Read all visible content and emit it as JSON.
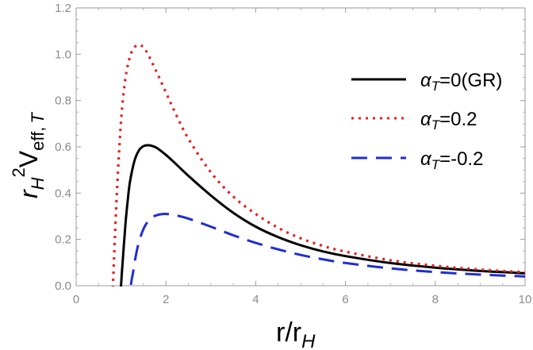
{
  "chart_data": {
    "type": "line",
    "title": "",
    "xlabel": {
      "main": "r/r",
      "sub": "H"
    },
    "ylabel": {
      "r": "r",
      "r_sub": "H",
      "sup": "2",
      "v": "V",
      "v_sub": "eff,",
      "v_sub_italic": "T"
    },
    "xlim": [
      0,
      10
    ],
    "ylim": [
      0,
      1.2
    ],
    "xticks": [
      0,
      2,
      4,
      6,
      8,
      10
    ],
    "xtick_labels": [
      "0",
      "2",
      "4",
      "6",
      "8",
      "10"
    ],
    "yticks": [
      0,
      0.2,
      0.4,
      0.6,
      0.8,
      1.0,
      1.2
    ],
    "ytick_labels": [
      "0.0",
      "0.2",
      "0.4",
      "0.6",
      "0.8",
      "1.0",
      "1.2"
    ],
    "grid": false,
    "legend_position": "upper-right",
    "series": [
      {
        "name": "GR",
        "legend": {
          "greek": "α",
          "sub": "T",
          "rest": "=0(GR)"
        },
        "color": "#000000",
        "style": "solid",
        "x": [
          1.0,
          1.05,
          1.1,
          1.15,
          1.2,
          1.3,
          1.4,
          1.5,
          1.6,
          1.67,
          1.8,
          2.0,
          2.2,
          2.5,
          3.0,
          3.5,
          4.0,
          4.5,
          5.0,
          5.5,
          6.0,
          7.0,
          8.0,
          9.0,
          10.0
        ],
        "y": [
          0.0,
          0.14,
          0.27,
          0.37,
          0.45,
          0.54,
          0.585,
          0.603,
          0.607,
          0.605,
          0.595,
          0.565,
          0.53,
          0.475,
          0.39,
          0.315,
          0.255,
          0.21,
          0.175,
          0.148,
          0.128,
          0.098,
          0.078,
          0.064,
          0.054
        ]
      },
      {
        "name": "alpha=0.2",
        "legend": {
          "greek": "α",
          "sub": "T",
          "rest": "=0.2"
        },
        "color": "#e32020",
        "style": "dotted",
        "x": [
          0.82,
          0.87,
          0.92,
          0.97,
          1.02,
          1.1,
          1.2,
          1.3,
          1.4,
          1.5,
          1.6,
          1.8,
          2.0,
          2.2,
          2.5,
          3.0,
          3.5,
          4.0,
          4.5,
          5.0,
          5.5,
          6.0,
          7.0,
          8.0,
          9.0,
          10.0
        ],
        "y": [
          0.0,
          0.24,
          0.45,
          0.62,
          0.76,
          0.9,
          0.99,
          1.03,
          1.04,
          1.03,
          1.0,
          0.92,
          0.835,
          0.75,
          0.635,
          0.49,
          0.385,
          0.31,
          0.25,
          0.205,
          0.172,
          0.147,
          0.11,
          0.086,
          0.07,
          0.058
        ]
      },
      {
        "name": "alpha=-0.2",
        "legend": {
          "greek": "α",
          "sub": "T",
          "rest": "=-0.2"
        },
        "color": "#1f2fd0",
        "style": "dashed",
        "x": [
          1.22,
          1.27,
          1.33,
          1.4,
          1.5,
          1.6,
          1.7,
          1.8,
          1.9,
          2.0,
          2.2,
          2.5,
          3.0,
          3.5,
          4.0,
          4.5,
          5.0,
          5.5,
          6.0,
          7.0,
          8.0,
          9.0,
          10.0
        ],
        "y": [
          0.0,
          0.06,
          0.13,
          0.19,
          0.245,
          0.278,
          0.296,
          0.305,
          0.309,
          0.31,
          0.305,
          0.29,
          0.255,
          0.218,
          0.185,
          0.157,
          0.133,
          0.114,
          0.098,
          0.075,
          0.059,
          0.048,
          0.04
        ]
      }
    ]
  }
}
